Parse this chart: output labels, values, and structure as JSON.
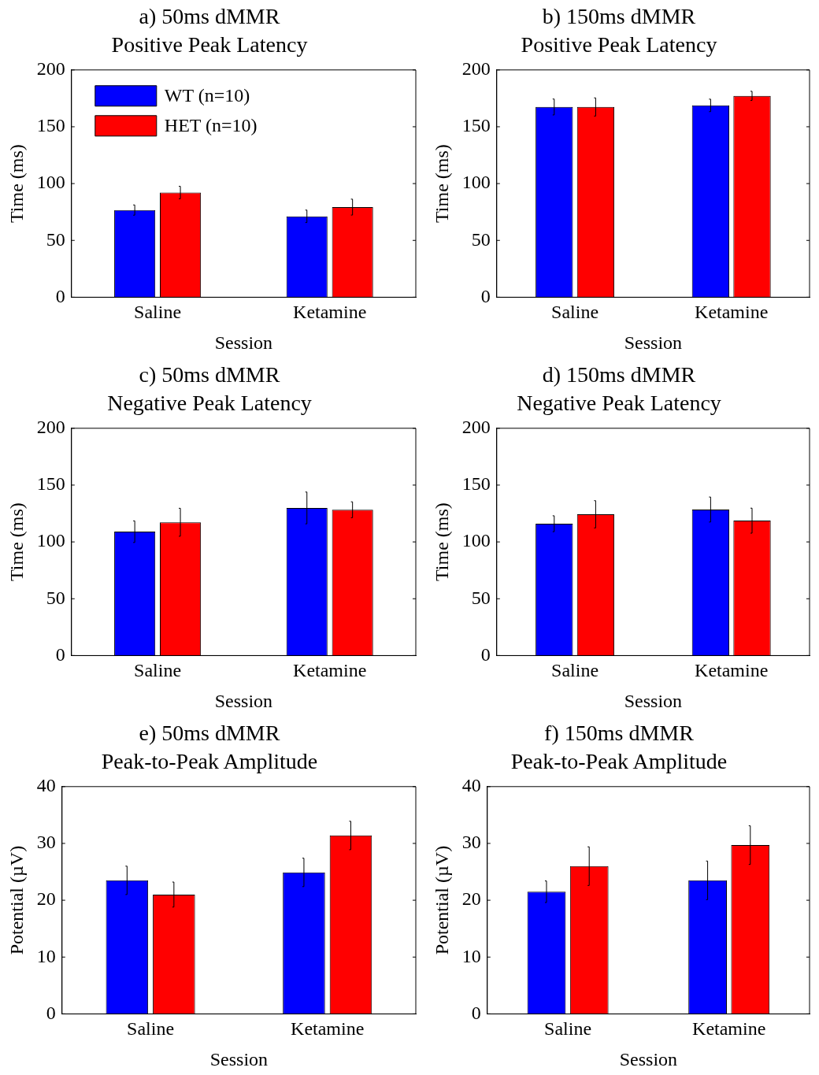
{
  "chart_data": [
    {
      "type": "bar",
      "title": "a) 50ms dMMR\nPositive Peak Latency",
      "xlabel": "Session",
      "ylabel": "Time (ms)",
      "categories": [
        "Saline",
        "Ketamine"
      ],
      "series": [
        {
          "name": "WT (n=10)",
          "color": "#0000ff",
          "values": [
            76.7,
            71.2
          ],
          "errors": [
            4.5,
            5.5
          ]
        },
        {
          "name": "HET (n=10)",
          "color": "#ff0000",
          "values": [
            92.1,
            79.3
          ],
          "errors": [
            5.5,
            7
          ]
        }
      ],
      "ylim": [
        0,
        200
      ],
      "yticks": [
        0,
        50,
        100,
        150,
        200
      ],
      "legend": "top left"
    },
    {
      "type": "bar",
      "title": "b) 150ms dMMR\nPositive Peak Latency",
      "xlabel": "Session",
      "ylabel": "Time (ms)",
      "categories": [
        "Saline",
        "Ketamine"
      ],
      "series": [
        {
          "color": "#0000ff",
          "values": [
            167.4,
            168.8
          ],
          "errors": [
            7,
            5.5
          ]
        },
        {
          "color": "#ff0000",
          "values": [
            167.4,
            177.2
          ],
          "errors": [
            8,
            4
          ]
        }
      ],
      "ylim": [
        0,
        200
      ],
      "yticks": [
        0,
        50,
        100,
        150,
        200
      ]
    },
    {
      "type": "bar",
      "title": "c) 50ms dMMR\nNegative Peak Latency",
      "xlabel": "Session",
      "ylabel": "Time (ms)",
      "categories": [
        "Saline",
        "Ketamine"
      ],
      "series": [
        {
          "color": "#0000ff",
          "values": [
            109,
            129.9
          ],
          "errors": [
            9.5,
            14
          ]
        },
        {
          "color": "#ff0000",
          "values": [
            117.3,
            128.3
          ],
          "errors": [
            12.3,
            7
          ]
        }
      ],
      "ylim": [
        0,
        200
      ],
      "yticks": [
        0,
        50,
        100,
        150,
        200
      ]
    },
    {
      "type": "bar",
      "title": "d) 150ms dMMR\nNegative Peak Latency",
      "xlabel": "Session",
      "ylabel": "Time (ms)",
      "categories": [
        "Saline",
        "Ketamine"
      ],
      "series": [
        {
          "color": "#0000ff",
          "values": [
            116,
            128.5
          ],
          "errors": [
            7,
            11
          ]
        },
        {
          "color": "#ff0000",
          "values": [
            124.3,
            118.7
          ],
          "errors": [
            12,
            11
          ]
        }
      ],
      "ylim": [
        0,
        200
      ],
      "yticks": [
        0,
        50,
        100,
        150,
        200
      ]
    },
    {
      "type": "bar",
      "title": "e) 50ms dMMR\nPeak-to-Peak Amplitude",
      "xlabel": "Session",
      "ylabel": "Potential (µV)",
      "categories": [
        "Saline",
        "Ketamine"
      ],
      "series": [
        {
          "color": "#0000ff",
          "values": [
            23.5,
            24.9
          ],
          "errors": [
            2.5,
            2.5
          ]
        },
        {
          "color": "#ff0000",
          "values": [
            21.0,
            31.4
          ],
          "errors": [
            2.2,
            2.5
          ]
        }
      ],
      "ylim": [
        0,
        40
      ],
      "yticks": [
        0,
        10,
        20,
        30,
        40
      ]
    },
    {
      "type": "bar",
      "title": "f) 150ms dMMR\nPeak-to-Peak Amplitude",
      "xlabel": "Session",
      "ylabel": "Potential (µV)",
      "categories": [
        "Saline",
        "Ketamine"
      ],
      "series": [
        {
          "color": "#0000ff",
          "values": [
            21.5,
            23.5
          ],
          "errors": [
            1.9,
            3.4
          ]
        },
        {
          "color": "#ff0000",
          "values": [
            26.0,
            29.7
          ],
          "errors": [
            3.4,
            3.4
          ]
        }
      ],
      "ylim": [
        0,
        40
      ],
      "yticks": [
        0,
        10,
        20,
        30,
        40
      ]
    }
  ]
}
